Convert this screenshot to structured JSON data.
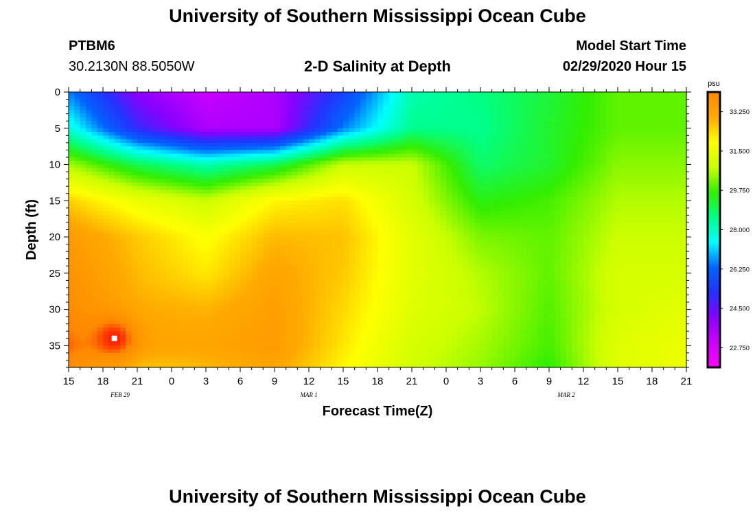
{
  "page": {
    "title_top": "University of Southern Mississippi Ocean Cube",
    "title_bottom": "University of Southern Mississippi Ocean Cube",
    "station_id": "PTBM6",
    "station_location": "30.2130N 88.5050W",
    "plot_title": "2-D Salinity at Depth",
    "model_start_label": "Model Start Time",
    "model_start_value": "02/29/2020 Hour 15"
  },
  "colors": {
    "colorbar_ramp": [
      "#ff00ff",
      "#cc00ff",
      "#8800ff",
      "#2233ff",
      "#0066ff",
      "#00ffff",
      "#00ff88",
      "#33ee00",
      "#ccff00",
      "#ffff00",
      "#ffaa00",
      "#ff8800"
    ],
    "hot_marker": "#ffffff"
  },
  "chart_data": {
    "type": "heatmap",
    "title": "2-D Salinity at Depth",
    "xlabel": "Forecast Time(Z)",
    "ylabel": "Depth (ft)",
    "units": "psu",
    "x_range_hours": [
      0,
      54
    ],
    "y_range_ft": [
      0,
      38
    ],
    "x_ticks": [
      {
        "h": 0,
        "label": "15"
      },
      {
        "h": 3,
        "label": "18"
      },
      {
        "h": 6,
        "label": "21"
      },
      {
        "h": 9,
        "label": "0"
      },
      {
        "h": 12,
        "label": "3"
      },
      {
        "h": 15,
        "label": "6"
      },
      {
        "h": 18,
        "label": "9"
      },
      {
        "h": 21,
        "label": "12"
      },
      {
        "h": 24,
        "label": "15"
      },
      {
        "h": 27,
        "label": "18"
      },
      {
        "h": 30,
        "label": "21"
      },
      {
        "h": 33,
        "label": "0"
      },
      {
        "h": 36,
        "label": "3"
      },
      {
        "h": 39,
        "label": "6"
      },
      {
        "h": 42,
        "label": "9"
      },
      {
        "h": 45,
        "label": "12"
      },
      {
        "h": 48,
        "label": "15"
      },
      {
        "h": 51,
        "label": "18"
      },
      {
        "h": 54,
        "label": "21"
      }
    ],
    "date_labels": [
      {
        "h": 4.5,
        "label": "FEB 29"
      },
      {
        "h": 21,
        "label": "MAR 1"
      },
      {
        "h": 43.5,
        "label": "MAR 2"
      }
    ],
    "y_ticks": [
      0,
      5,
      10,
      15,
      20,
      25,
      30,
      35
    ],
    "colorbar": {
      "min": 21.875,
      "max": 34.125,
      "ticks": [
        "33.250",
        "31.500",
        "29.750",
        "28.000",
        "26.250",
        "24.500",
        "22.750"
      ],
      "tick_values": [
        33.25,
        31.5,
        29.75,
        28.0,
        26.25,
        24.5,
        22.75
      ]
    },
    "grid": {
      "times_h": [
        0,
        6,
        12,
        18,
        24,
        30,
        36,
        42,
        48,
        54
      ],
      "depths_ft": [
        0,
        5,
        10,
        15,
        20,
        25,
        30,
        35,
        38
      ],
      "salinity": [
        [
          26.5,
          24.0,
          23.0,
          23.5,
          25.5,
          28.2,
          28.6,
          29.2,
          30.0,
          30.0
        ],
        [
          27.8,
          25.0,
          23.5,
          23.5,
          26.5,
          28.5,
          28.5,
          29.3,
          30.0,
          30.0
        ],
        [
          30.5,
          29.0,
          28.2,
          29.0,
          30.8,
          30.8,
          28.8,
          29.3,
          30.3,
          30.3
        ],
        [
          32.5,
          31.5,
          30.8,
          32.0,
          32.3,
          31.0,
          29.5,
          29.8,
          30.6,
          30.6
        ],
        [
          33.5,
          32.6,
          31.8,
          32.8,
          32.7,
          31.3,
          30.2,
          30.0,
          30.8,
          30.8
        ],
        [
          33.8,
          32.8,
          32.2,
          33.2,
          32.6,
          31.3,
          30.6,
          30.0,
          31.0,
          31.0
        ],
        [
          34.0,
          33.0,
          32.9,
          33.4,
          32.4,
          31.2,
          30.7,
          29.9,
          31.0,
          31.3
        ],
        [
          34.3,
          33.2,
          33.2,
          33.5,
          32.2,
          31.0,
          30.5,
          29.8,
          31.2,
          31.5
        ],
        [
          34.0,
          32.6,
          32.8,
          33.2,
          32.0,
          30.9,
          30.4,
          29.6,
          31.2,
          31.5
        ]
      ],
      "hotspot": {
        "h": 4,
        "depth_ft": 34,
        "value": 34.6
      }
    }
  }
}
